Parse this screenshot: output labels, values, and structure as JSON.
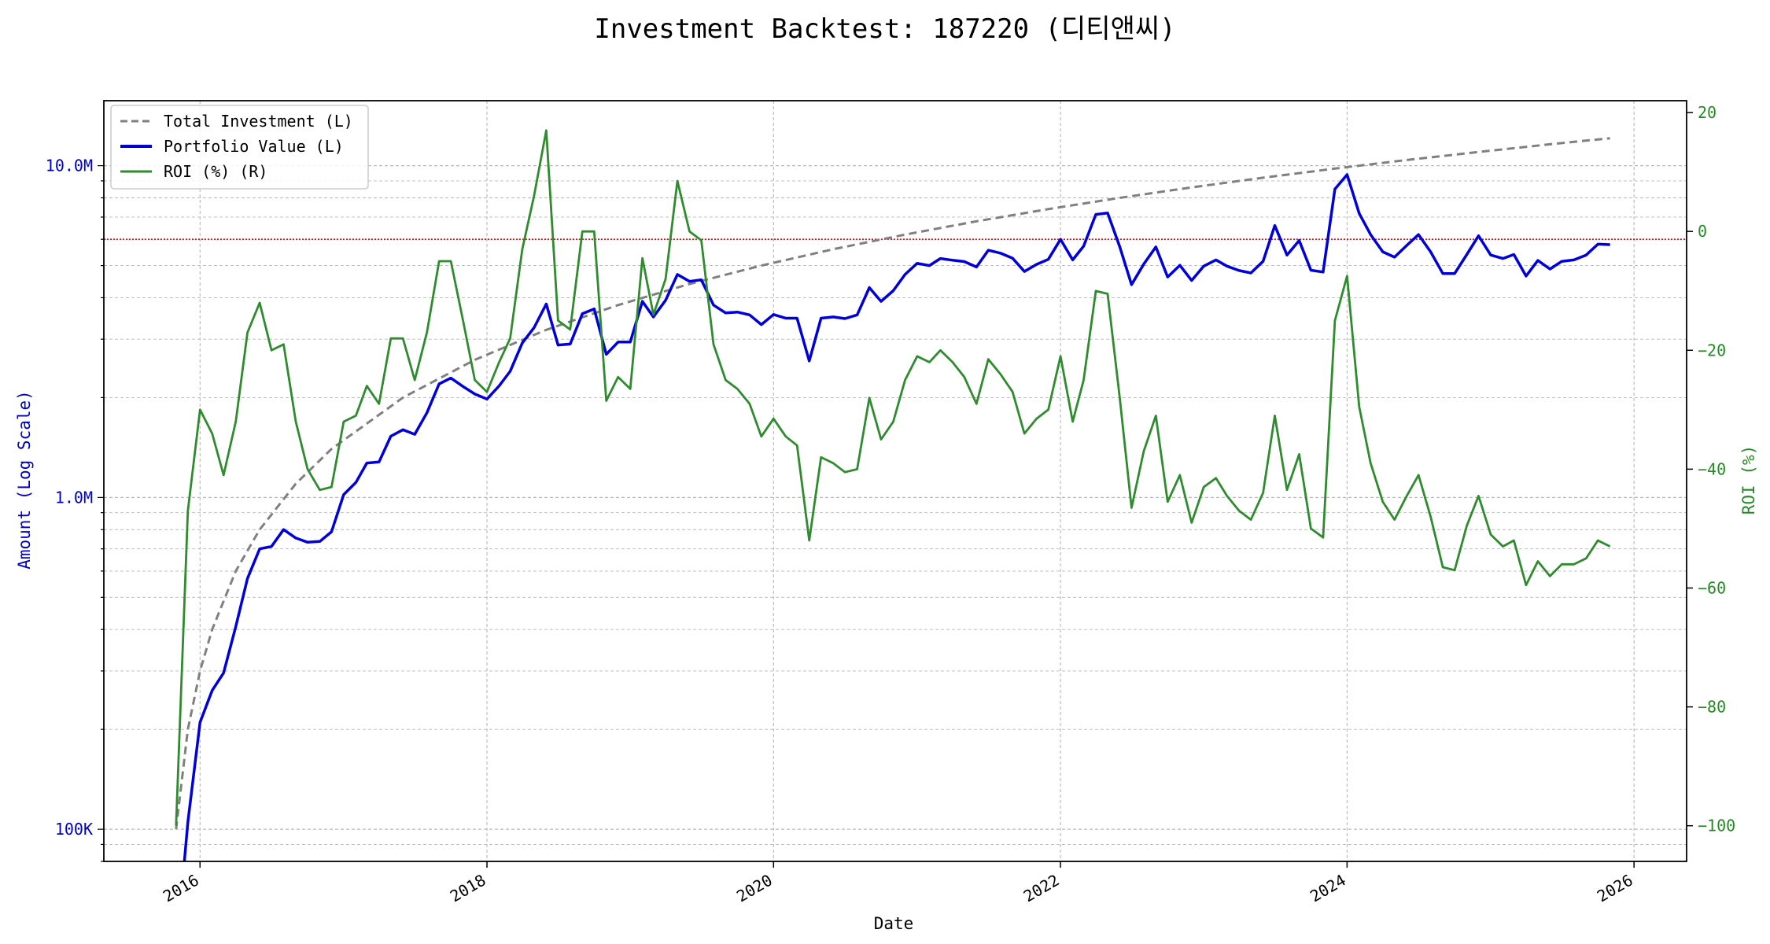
{
  "chart_data": {
    "type": "line",
    "title": "Investment Backtest: 187220 (디티앤씨)",
    "xlabel": "Date",
    "ylabel_left": "Amount (Log Scale)",
    "ylabel_right": "ROI (%)",
    "x_range": [
      "2015-05-01",
      "2026-05-15"
    ],
    "ylim_left": [
      80000,
      15700000
    ],
    "ylim_right": [
      -106,
      22
    ],
    "y_left_scale": "log",
    "x_ticks": [
      "2016",
      "2018",
      "2020",
      "2022",
      "2024",
      "2026"
    ],
    "y_left_ticks": [
      {
        "value": 100000,
        "label": "100K"
      },
      {
        "value": 1000000,
        "label": "1.0M"
      },
      {
        "value": 10000000,
        "label": "10.0M"
      }
    ],
    "y_right_ticks": [
      {
        "value": 20,
        "label": "20"
      },
      {
        "value": 0,
        "label": "0"
      },
      {
        "value": -20,
        "label": "−20"
      },
      {
        "value": -40,
        "label": "−40"
      },
      {
        "value": -60,
        "label": "−60"
      },
      {
        "value": -80,
        "label": "−80"
      },
      {
        "value": -100,
        "label": "−100"
      }
    ],
    "reference_line_left": 6000000,
    "grid": true,
    "legend_position": "top-left",
    "colors": {
      "investment": "#808080",
      "portfolio": "#0000dd",
      "roi": "#2e8b2e",
      "reference": "#cc0000",
      "left_axis": "#0000cc",
      "right_axis": "#228b22"
    },
    "series": [
      {
        "name": "Total Investment (L)",
        "axis": "left",
        "style": "dashed",
        "x": [
          "2015-11-01",
          "2015-12-01",
          "2016-01-01",
          "2016-02-01",
          "2016-04-01",
          "2016-06-01",
          "2016-09-01",
          "2016-12-01",
          "2017-06-01",
          "2017-12-01",
          "2018-06-01",
          "2018-12-01",
          "2019-06-01",
          "2019-12-01",
          "2020-06-01",
          "2020-12-01",
          "2021-06-01",
          "2021-12-01",
          "2022-06-01",
          "2022-12-01",
          "2023-06-01",
          "2023-12-01",
          "2024-06-01",
          "2024-12-01",
          "2025-06-01",
          "2025-11-01"
        ],
        "y": [
          100000,
          200000,
          300000,
          400000,
          600000,
          800000,
          1100000,
          1400000,
          2000000,
          2600000,
          3200000,
          3800000,
          4400000,
          5000000,
          5600000,
          6200000,
          6800000,
          7400000,
          8000000,
          8600000,
          9200000,
          9800000,
          10400000,
          11000000,
          11600000,
          12100000
        ]
      },
      {
        "name": "Portfolio Value (L)",
        "axis": "left",
        "style": "solid",
        "x": [
          "2015-11-20",
          "2015-12-01",
          "2016-01-01",
          "2016-02-01",
          "2016-03-01",
          "2016-04-01",
          "2016-05-01",
          "2016-06-01",
          "2016-07-01",
          "2016-08-01",
          "2016-09-01",
          "2016-10-01",
          "2016-11-01",
          "2016-12-01",
          "2017-01-01",
          "2017-02-01",
          "2017-03-01",
          "2017-04-01",
          "2017-05-01",
          "2017-06-01",
          "2017-07-01",
          "2017-08-01",
          "2017-09-01",
          "2017-10-01",
          "2017-11-01",
          "2017-12-01",
          "2018-01-01",
          "2018-02-01",
          "2018-03-01",
          "2018-04-01",
          "2018-05-01",
          "2018-06-01",
          "2018-07-01",
          "2018-08-01",
          "2018-09-01",
          "2018-10-01",
          "2018-11-01",
          "2018-12-01",
          "2019-01-01",
          "2019-02-01",
          "2019-03-01",
          "2019-04-01",
          "2019-05-01",
          "2019-06-01",
          "2019-07-01",
          "2019-08-01",
          "2019-09-01",
          "2019-10-01",
          "2019-11-01",
          "2019-12-01",
          "2020-01-01",
          "2020-02-01",
          "2020-03-01",
          "2020-04-01",
          "2020-05-01",
          "2020-06-01",
          "2020-07-01",
          "2020-08-01",
          "2020-09-01",
          "2020-10-01",
          "2020-11-01",
          "2020-12-01",
          "2021-01-01",
          "2021-02-01",
          "2021-03-01",
          "2021-04-01",
          "2021-05-01",
          "2021-06-01",
          "2021-07-01",
          "2021-08-01",
          "2021-09-01",
          "2021-10-01",
          "2021-11-01",
          "2021-12-01",
          "2022-01-01",
          "2022-02-01",
          "2022-03-01",
          "2022-04-01",
          "2022-05-01",
          "2022-06-01",
          "2022-07-01",
          "2022-08-01",
          "2022-09-01",
          "2022-10-01",
          "2022-11-01",
          "2022-12-01",
          "2023-01-01",
          "2023-02-01",
          "2023-03-01",
          "2023-04-01",
          "2023-05-01",
          "2023-06-01",
          "2023-07-01",
          "2023-08-01",
          "2023-09-01",
          "2023-10-01",
          "2023-11-01",
          "2023-12-01",
          "2024-01-01",
          "2024-02-01",
          "2024-03-01",
          "2024-04-01",
          "2024-05-01",
          "2024-06-01",
          "2024-07-01",
          "2024-08-01",
          "2024-09-01",
          "2024-10-01",
          "2024-11-01",
          "2024-12-01",
          "2025-01-01",
          "2025-02-01",
          "2025-03-01",
          "2025-04-01",
          "2025-05-01",
          "2025-06-01",
          "2025-07-01",
          "2025-08-01",
          "2025-09-01",
          "2025-10-01",
          "2025-11-01"
        ],
        "y": [
          75000,
          105000,
          210000,
          262000,
          296000,
          408000,
          570000,
          700000,
          712000,
          800000,
          755000,
          733000,
          737000,
          788000,
          1020000,
          1110000,
          1270000,
          1280000,
          1530000,
          1600000,
          1550000,
          1800000,
          2200000,
          2290000,
          2160000,
          2050000,
          1980000,
          2170000,
          2400000,
          2920000,
          3250000,
          3830000,
          2880000,
          2900000,
          3580000,
          3700000,
          2700000,
          2940000,
          2940000,
          3900000,
          3500000,
          3930000,
          4700000,
          4480000,
          4530000,
          3800000,
          3600000,
          3620000,
          3550000,
          3320000,
          3560000,
          3470000,
          3470000,
          2580000,
          3470000,
          3500000,
          3460000,
          3550000,
          4290000,
          3900000,
          4200000,
          4700000,
          5080000,
          5000000,
          5250000,
          5190000,
          5140000,
          4950000,
          5560000,
          5450000,
          5260000,
          4800000,
          5040000,
          5220000,
          6000000,
          5200000,
          5720000,
          7130000,
          7200000,
          5700000,
          4380000,
          5050000,
          5690000,
          4620000,
          5010000,
          4510000,
          4980000,
          5200000,
          4980000,
          4830000,
          4750000,
          5150000,
          6600000,
          5380000,
          5950000,
          4840000,
          4780000,
          8500000,
          9400000,
          7180000,
          6200000,
          5500000,
          5300000,
          5750000,
          6200000,
          5500000,
          4730000,
          4730000,
          5400000,
          6150000,
          5380000,
          5250000,
          5400000,
          4650000,
          5180000,
          4880000,
          5150000,
          5200000,
          5380000,
          5800000,
          5780000
        ]
      },
      {
        "name": "ROI (%) (R)",
        "axis": "right",
        "style": "solid",
        "x": [
          "2015-11-01",
          "2015-12-01",
          "2016-01-01",
          "2016-02-01",
          "2016-03-01",
          "2016-04-01",
          "2016-05-01",
          "2016-06-01",
          "2016-07-01",
          "2016-08-01",
          "2016-09-01",
          "2016-10-01",
          "2016-11-01",
          "2016-12-01",
          "2017-01-01",
          "2017-02-01",
          "2017-03-01",
          "2017-04-01",
          "2017-05-01",
          "2017-06-01",
          "2017-07-01",
          "2017-08-01",
          "2017-09-01",
          "2017-10-01",
          "2017-11-01",
          "2017-12-01",
          "2018-01-01",
          "2018-02-01",
          "2018-03-01",
          "2018-04-01",
          "2018-05-01",
          "2018-06-01",
          "2018-07-01",
          "2018-08-01",
          "2018-09-01",
          "2018-10-01",
          "2018-11-01",
          "2018-12-01",
          "2019-01-01",
          "2019-02-01",
          "2019-03-01",
          "2019-04-01",
          "2019-05-01",
          "2019-06-01",
          "2019-07-01",
          "2019-08-01",
          "2019-09-01",
          "2019-10-01",
          "2019-11-01",
          "2019-12-01",
          "2020-01-01",
          "2020-02-01",
          "2020-03-01",
          "2020-04-01",
          "2020-05-01",
          "2020-06-01",
          "2020-07-01",
          "2020-08-01",
          "2020-09-01",
          "2020-10-01",
          "2020-11-01",
          "2020-12-01",
          "2021-01-01",
          "2021-02-01",
          "2021-03-01",
          "2021-04-01",
          "2021-05-01",
          "2021-06-01",
          "2021-07-01",
          "2021-08-01",
          "2021-09-01",
          "2021-10-01",
          "2021-11-01",
          "2021-12-01",
          "2022-01-01",
          "2022-02-01",
          "2022-03-01",
          "2022-04-01",
          "2022-05-01",
          "2022-06-01",
          "2022-07-01",
          "2022-08-01",
          "2022-09-01",
          "2022-10-01",
          "2022-11-01",
          "2022-12-01",
          "2023-01-01",
          "2023-02-01",
          "2023-03-01",
          "2023-04-01",
          "2023-05-01",
          "2023-06-01",
          "2023-07-01",
          "2023-08-01",
          "2023-09-01",
          "2023-10-01",
          "2023-11-01",
          "2023-12-01",
          "2024-01-01",
          "2024-02-01",
          "2024-03-01",
          "2024-04-01",
          "2024-05-01",
          "2024-06-01",
          "2024-07-01",
          "2024-08-01",
          "2024-09-01",
          "2024-10-01",
          "2024-11-01",
          "2024-12-01",
          "2025-01-01",
          "2025-02-01",
          "2025-03-01",
          "2025-04-01",
          "2025-05-01",
          "2025-06-01",
          "2025-07-01",
          "2025-08-01",
          "2025-09-01",
          "2025-10-01",
          "2025-11-01"
        ],
        "y": [
          -100,
          -47,
          -30,
          -34,
          -41,
          -32,
          -17,
          -12,
          -20,
          -19,
          -32,
          -40,
          -43.5,
          -43,
          -32,
          -31,
          -26,
          -29,
          -18,
          -18,
          -25,
          -17,
          -5,
          -5,
          -15,
          -25,
          -27,
          -22,
          -18,
          -3,
          6,
          17,
          -15,
          -16.5,
          0,
          0,
          -28.5,
          -24.5,
          -26.5,
          -4.5,
          -14,
          -8,
          8.5,
          0,
          -1.5,
          -19,
          -25,
          -26.5,
          -29,
          -34.5,
          -31.5,
          -34.5,
          -36,
          -52,
          -38,
          -39,
          -40.5,
          -40,
          -28,
          -35,
          -32,
          -25,
          -21,
          -22,
          -20,
          -22,
          -24.5,
          -29,
          -21.5,
          -24,
          -27,
          -34,
          -31.5,
          -30,
          -21,
          -32,
          -25,
          -10,
          -10.5,
          -28,
          -46.5,
          -37,
          -31,
          -45.5,
          -41,
          -49,
          -43,
          -41.5,
          -44.5,
          -47,
          -48.5,
          -44,
          -31,
          -43.5,
          -37.5,
          -50,
          -51.5,
          -15,
          -7.5,
          -29.5,
          -39,
          -45.5,
          -48.5,
          -44.5,
          -41,
          -48,
          -56.5,
          -57,
          -49.5,
          -44.5,
          -51,
          -53,
          -52,
          -59.5,
          -55.5,
          -58,
          -56,
          -56,
          -55,
          -52,
          -53
        ]
      }
    ]
  }
}
